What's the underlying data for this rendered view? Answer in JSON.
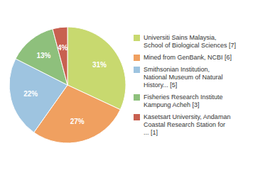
{
  "chart_data": {
    "type": "pie",
    "categories": [
      "Universiti Sains Malaysia,\nSchool of Biological Sciences [7]",
      "Mined from GenBank, NCBI [6]",
      "Smithsonian Institution,\nNational Museum of Natural\nHistory... [5]",
      "Fisheries Research Institute\nKampung Acheh [3]",
      "Kasetsart University, Andaman\nCoastal Research Station for\n... [1]"
    ],
    "values": [
      31,
      27,
      22,
      13,
      4
    ],
    "value_labels": [
      "31%",
      "27%",
      "22%",
      "13%",
      "4%"
    ],
    "colors": [
      "#c8d96f",
      "#f0a060",
      "#9ec4e0",
      "#8ec07c",
      "#c86050"
    ],
    "legend": "right",
    "data_labels": true
  }
}
